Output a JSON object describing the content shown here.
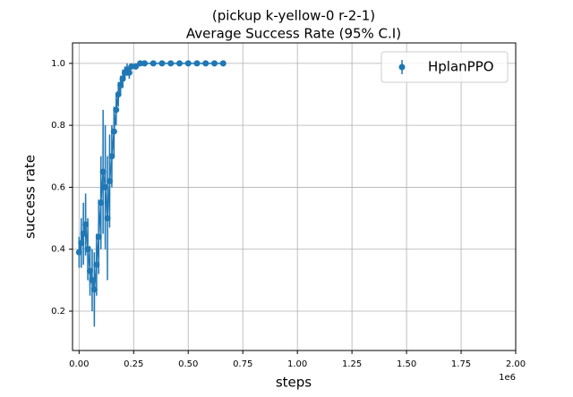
{
  "chart_data": {
    "type": "errorbar",
    "title": "(pickup k-yellow-0 r-2-1)",
    "subtitle": "Average Success Rate (95% C.I)",
    "x_label": "steps",
    "y_label": "success rate",
    "x_offset_label": "1e6",
    "x": [
      0.0,
      0.01,
      0.02,
      0.03,
      0.04,
      0.05,
      0.06,
      0.07,
      0.08,
      0.09,
      0.1,
      0.11,
      0.12,
      0.13,
      0.14,
      0.15,
      0.16,
      0.17,
      0.18,
      0.19,
      0.2,
      0.21,
      0.22,
      0.23,
      0.24,
      0.26,
      0.28,
      0.3,
      0.34,
      0.38,
      0.42,
      0.46,
      0.5,
      0.54,
      0.58,
      0.62,
      0.66
    ],
    "series": [
      {
        "name": "HplanPPO",
        "color": "#1f77b4",
        "values": [
          0.39,
          0.42,
          0.45,
          0.48,
          0.4,
          0.33,
          0.3,
          0.27,
          0.35,
          0.44,
          0.55,
          0.65,
          0.6,
          0.5,
          0.62,
          0.7,
          0.78,
          0.85,
          0.9,
          0.93,
          0.95,
          0.97,
          0.98,
          0.97,
          0.99,
          0.99,
          1.0,
          1.0,
          1.0,
          1.0,
          1.0,
          1.0,
          1.0,
          1.0,
          1.0,
          1.0,
          1.0
        ],
        "errors": [
          0.05,
          0.08,
          0.1,
          0.1,
          0.1,
          0.08,
          0.1,
          0.12,
          0.1,
          0.12,
          0.15,
          0.2,
          0.2,
          0.2,
          0.15,
          0.1,
          0.08,
          0.05,
          0.04,
          0.03,
          0.03,
          0.02,
          0.02,
          0.02,
          0.01,
          0.01,
          0.005,
          0.005,
          0.005,
          0.005,
          0.005,
          0.005,
          0.005,
          0.005,
          0.005,
          0.005,
          0.005
        ]
      }
    ],
    "xlim": [
      -0.03,
      2.0
    ],
    "xticks": [
      {
        "value": 0,
        "label": "0.00"
      },
      0.25,
      {
        "value": 0.5,
        "label": "0.50"
      },
      0.75,
      {
        "value": 1,
        "label": "1.00"
      },
      1.25,
      {
        "value": 1.5,
        "label": "1.50"
      },
      1.75,
      {
        "value": 2,
        "label": "2.00"
      }
    ],
    "ylim": [
      0.073,
      1.066
    ],
    "yticks": [
      0.2,
      0.4,
      0.6,
      0.8,
      {
        "value": 1,
        "label": "1.0"
      }
    ],
    "grid": true,
    "legend": "upper right"
  }
}
